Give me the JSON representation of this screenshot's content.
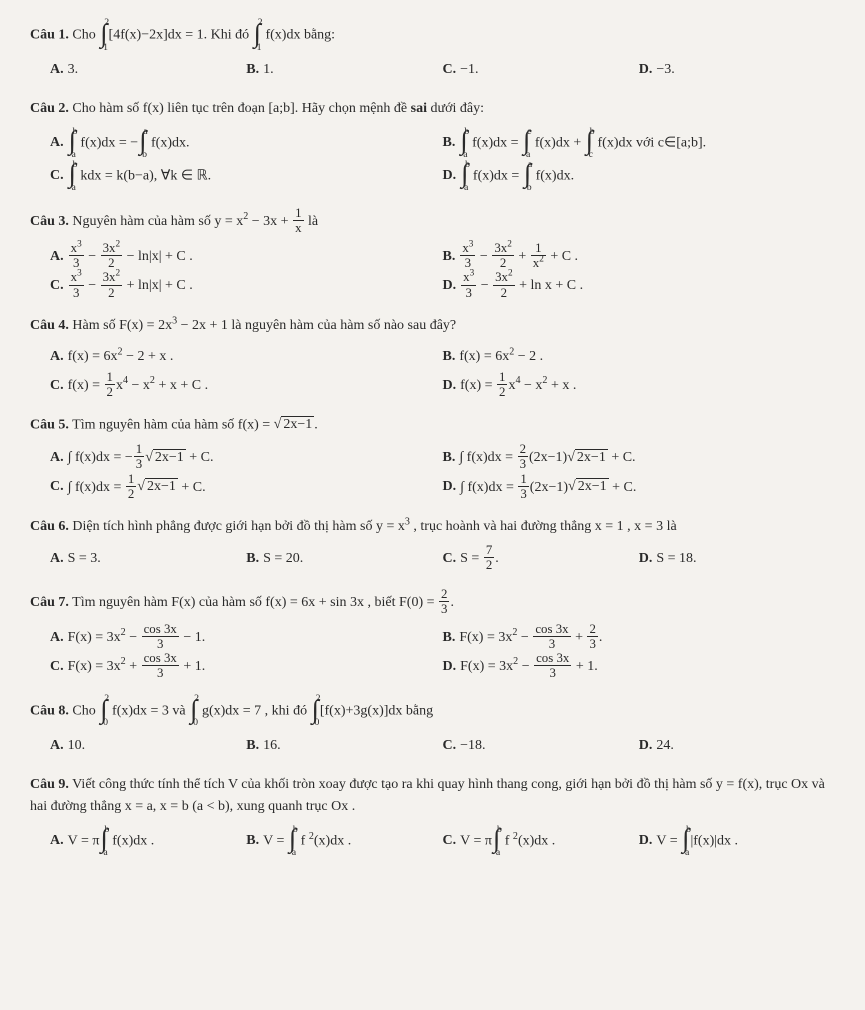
{
  "questions": [
    {
      "label": "Câu 1.",
      "stem_html": "Cho <span class='intg'><span class='up'>2</span><span class='sym'>∫</span><span class='lo'>1</span></span>[4f(x)−2x]dx = 1. Khi đó <span class='intg'><span class='up'>2</span><span class='sym'>∫</span><span class='lo'>1</span></span> f(x)dx bằng:",
      "options_class": "opt-4",
      "options": [
        {
          "label": "A.",
          "html": "3."
        },
        {
          "label": "B.",
          "html": "1."
        },
        {
          "label": "C.",
          "html": "−1."
        },
        {
          "label": "D.",
          "html": "−3."
        }
      ]
    },
    {
      "label": "Câu 2.",
      "stem_html": "Cho hàm số f(x) liên tục trên đoạn [a;b]. Hãy chọn mệnh đề <b>sai</b> dưới đây:",
      "options_class": "opt-2",
      "options": [
        {
          "label": "A.",
          "html": "<span class='intg'><span class='up'>b</span><span class='sym'>∫</span><span class='lo'>a</span></span> f(x)dx = −<span class='intg'><span class='up'>a</span><span class='sym'>∫</span><span class='lo'>b</span></span> f(x)dx."
        },
        {
          "label": "B.",
          "html": "<span class='intg'><span class='up'>b</span><span class='sym'>∫</span><span class='lo'>a</span></span> f(x)dx = <span class='intg'><span class='up'>c</span><span class='sym'>∫</span><span class='lo'>a</span></span> f(x)dx + <span class='intg'><span class='up'>b</span><span class='sym'>∫</span><span class='lo'>c</span></span> f(x)dx với c∈[a;b]."
        },
        {
          "label": "C.",
          "html": "<span class='intg'><span class='up'>b</span><span class='sym'>∫</span><span class='lo'>a</span></span> kdx = k(b−a), ∀k ∈ ℝ."
        },
        {
          "label": "D.",
          "html": "<span class='intg'><span class='up'>b</span><span class='sym'>∫</span><span class='lo'>a</span></span> f(x)dx = <span class='intg'><span class='up'>a</span><span class='sym'>∫</span><span class='lo'>b</span></span> f(x)dx."
        }
      ]
    },
    {
      "label": "Câu 3.",
      "stem_html": "Nguyên hàm của hàm số y = x<sup>2</sup> − 3x + <span class='frac'><span class='num'>1</span><span class='den'>x</span></span> là",
      "options_class": "opt-2",
      "options": [
        {
          "label": "A.",
          "html": "<span class='frac'><span class='num'>x<sup>3</sup></span><span class='den'>3</span></span> − <span class='frac'><span class='num'>3x<sup>2</sup></span><span class='den'>2</span></span> − ln|x| + C ."
        },
        {
          "label": "B.",
          "html": "<span class='frac'><span class='num'>x<sup>3</sup></span><span class='den'>3</span></span> − <span class='frac'><span class='num'>3x<sup>2</sup></span><span class='den'>2</span></span> + <span class='frac'><span class='num'>1</span><span class='den'>x<sup>2</sup></span></span> + C ."
        },
        {
          "label": "C.",
          "html": "<span class='frac'><span class='num'>x<sup>3</sup></span><span class='den'>3</span></span> − <span class='frac'><span class='num'>3x<sup>2</sup></span><span class='den'>2</span></span> + ln|x| + C ."
        },
        {
          "label": "D.",
          "html": "<span class='frac'><span class='num'>x<sup>3</sup></span><span class='den'>3</span></span> − <span class='frac'><span class='num'>3x<sup>2</sup></span><span class='den'>2</span></span> + ln x + C ."
        }
      ]
    },
    {
      "label": "Câu 4.",
      "stem_html": "Hàm số F(x) = 2x<sup>3</sup> − 2x + 1 là nguyên hàm của hàm số nào sau đây?",
      "options_class": "opt-2",
      "options": [
        {
          "label": "A.",
          "html": "f(x) = 6x<sup>2</sup> − 2 + x ."
        },
        {
          "label": "B.",
          "html": "f(x) = 6x<sup>2</sup> − 2 ."
        },
        {
          "label": "C.",
          "html": "f(x) = <span class='frac'><span class='num'>1</span><span class='den'>2</span></span>x<sup>4</sup> − x<sup>2</sup> + x + C ."
        },
        {
          "label": "D.",
          "html": "f(x) = <span class='frac'><span class='num'>1</span><span class='den'>2</span></span>x<sup>4</sup> − x<sup>2</sup> + x ."
        }
      ]
    },
    {
      "label": "Câu 5.",
      "stem_html": "Tìm nguyên hàm của hàm số f(x) = <span class='sqrt'><span class='rad'>2x−1</span></span>.",
      "options_class": "opt-2",
      "options": [
        {
          "label": "A.",
          "html": "∫ f(x)dx = −<span class='frac'><span class='num'>1</span><span class='den'>3</span></span><span class='sqrt'><span class='rad'>2x−1</span></span> + C."
        },
        {
          "label": "B.",
          "html": "∫ f(x)dx = <span class='frac'><span class='num'>2</span><span class='den'>3</span></span>(2x−1)<span class='sqrt'><span class='rad'>2x−1</span></span> + C."
        },
        {
          "label": "C.",
          "html": "∫ f(x)dx = <span class='frac'><span class='num'>1</span><span class='den'>2</span></span><span class='sqrt'><span class='rad'>2x−1</span></span> + C."
        },
        {
          "label": "D.",
          "html": "∫ f(x)dx = <span class='frac'><span class='num'>1</span><span class='den'>3</span></span>(2x−1)<span class='sqrt'><span class='rad'>2x−1</span></span> + C."
        }
      ]
    },
    {
      "label": "Câu 6.",
      "stem_html": "Diện tích hình phẳng được giới hạn bởi đồ thị hàm số y = x<sup>3</sup> , trục hoành và hai đường thẳng x = 1 , x = 3 là",
      "options_class": "opt-4",
      "options": [
        {
          "label": "A.",
          "html": "S = 3."
        },
        {
          "label": "B.",
          "html": "S = 20."
        },
        {
          "label": "C.",
          "html": "S = <span class='frac'><span class='num'>7</span><span class='den'>2</span></span>."
        },
        {
          "label": "D.",
          "html": "S = 18."
        }
      ]
    },
    {
      "label": "Câu 7.",
      "stem_html": "Tìm nguyên hàm F(x) của hàm số f(x) = 6x + sin 3x , biết F(0) = <span class='frac'><span class='num'>2</span><span class='den'>3</span></span>.",
      "options_class": "opt-2",
      "options": [
        {
          "label": "A.",
          "html": "F(x) = 3x<sup>2</sup> − <span class='frac'><span class='num'>cos 3x</span><span class='den'>3</span></span> − 1."
        },
        {
          "label": "B.",
          "html": "F(x) = 3x<sup>2</sup> − <span class='frac'><span class='num'>cos 3x</span><span class='den'>3</span></span> + <span class='frac'><span class='num'>2</span><span class='den'>3</span></span>."
        },
        {
          "label": "C.",
          "html": "F(x) = 3x<sup>2</sup> + <span class='frac'><span class='num'>cos 3x</span><span class='den'>3</span></span> + 1."
        },
        {
          "label": "D.",
          "html": "F(x) = 3x<sup>2</sup> − <span class='frac'><span class='num'>cos 3x</span><span class='den'>3</span></span> + 1."
        }
      ]
    },
    {
      "label": "Câu 8.",
      "stem_html": "Cho <span class='intg'><span class='up'>2</span><span class='sym'>∫</span><span class='lo'>0</span></span> f(x)dx = 3 và <span class='intg'><span class='up'>2</span><span class='sym'>∫</span><span class='lo'>0</span></span> g(x)dx = 7 , khi đó <span class='intg'><span class='up'>2</span><span class='sym'>∫</span><span class='lo'>0</span></span>[f(x)+3g(x)]dx bằng",
      "options_class": "opt-4",
      "options": [
        {
          "label": "A.",
          "html": "10."
        },
        {
          "label": "B.",
          "html": "16."
        },
        {
          "label": "C.",
          "html": "−18."
        },
        {
          "label": "D.",
          "html": "24."
        }
      ]
    },
    {
      "label": "Câu 9.",
      "stem_html": "Viết công thức tính thể tích V của khối tròn xoay được tạo ra khi quay hình thang cong, giới hạn bởi đồ thị hàm số y = f(x), trục Ox và hai đường thẳng x = a, x = b (a &lt; b), xung quanh trục Ox .",
      "options_class": "opt-4",
      "options": [
        {
          "label": "A.",
          "html": "V = π<span class='intg'><span class='up'>b</span><span class='sym'>∫</span><span class='lo'>a</span></span> f(x)dx ."
        },
        {
          "label": "B.",
          "html": "V = <span class='intg'><span class='up'>b</span><span class='sym'>∫</span><span class='lo'>a</span></span> f <sup>2</sup>(x)dx ."
        },
        {
          "label": "C.",
          "html": "V = π<span class='intg'><span class='up'>b</span><span class='sym'>∫</span><span class='lo'>a</span></span> f <sup>2</sup>(x)dx ."
        },
        {
          "label": "D.",
          "html": "V = <span class='intg'><span class='up'>b</span><span class='sym'>∫</span><span class='lo'>a</span></span>|f(x)|dx ."
        }
      ]
    }
  ]
}
